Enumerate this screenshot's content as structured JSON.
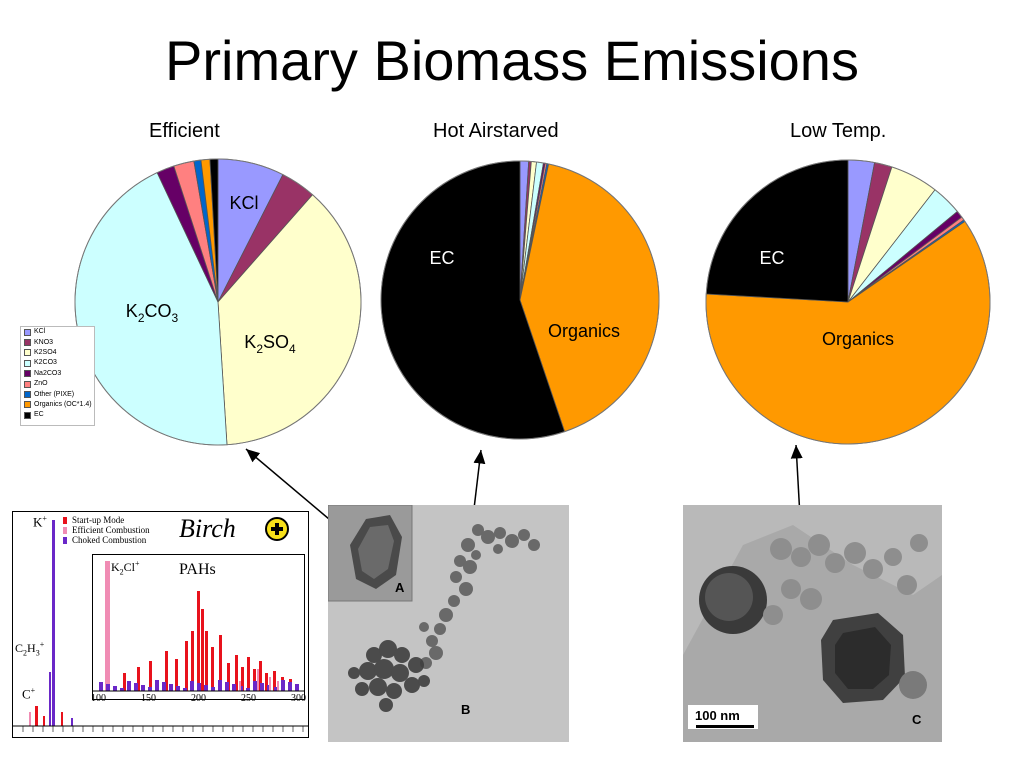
{
  "title": "Primary Biomass Emissions",
  "legend_entries": [
    "KCl",
    "KNO3",
    "K2SO4",
    "K2CO3",
    "Na2CO3",
    "ZnO",
    "Other (PIXE)",
    "Organics (OC*1.4)",
    "EC"
  ],
  "category_colors": {
    "KCl": "#9999ff",
    "KNO3": "#993366",
    "K2SO4": "#ffffcc",
    "K2CO3": "#ccffff",
    "Na2CO3": "#660066",
    "ZnO": "#ff8080",
    "Other (PIXE)": "#0066cc",
    "Organics (OC*1.4)": "#ff9900",
    "EC": "#000000"
  },
  "chart_data": [
    {
      "type": "pie",
      "title": "Efficient",
      "slices": [
        {
          "category": "KCl",
          "value": 7.5
        },
        {
          "category": "KNO3",
          "value": 4.0
        },
        {
          "category": "K2SO4",
          "value": 37.5
        },
        {
          "category": "K2CO3",
          "value": 44.0
        },
        {
          "category": "Na2CO3",
          "value": 2.0
        },
        {
          "category": "ZnO",
          "value": 2.3
        },
        {
          "category": "Other (PIXE)",
          "value": 0.8
        },
        {
          "category": "Organics (OC*1.4)",
          "value": 1.0
        },
        {
          "category": "EC",
          "value": 0.9
        }
      ],
      "slice_labels": [
        {
          "category": "KCl",
          "parts": [
            [
              "KCl",
              ""
            ]
          ]
        },
        {
          "category": "K2CO3",
          "parts": [
            [
              "K",
              ""
            ],
            [
              "2",
              "sub"
            ],
            [
              "CO",
              ""
            ],
            [
              "3",
              "sub"
            ]
          ]
        },
        {
          "category": "K2SO4",
          "parts": [
            [
              "K",
              ""
            ],
            [
              "2",
              "sub"
            ],
            [
              "SO",
              ""
            ],
            [
              "4",
              "sub"
            ]
          ]
        }
      ]
    },
    {
      "type": "pie",
      "title": "Hot Airstarved",
      "slices": [
        {
          "category": "KCl",
          "value": 1.0
        },
        {
          "category": "KNO3",
          "value": 0.3
        },
        {
          "category": "K2SO4",
          "value": 0.6
        },
        {
          "category": "K2CO3",
          "value": 0.8
        },
        {
          "category": "Na2CO3",
          "value": 0.2
        },
        {
          "category": "ZnO",
          "value": 0.2
        },
        {
          "category": "Other (PIXE)",
          "value": 0.2
        },
        {
          "category": "Organics (OC*1.4)",
          "value": 41.5
        },
        {
          "category": "EC",
          "value": 55.2
        }
      ],
      "slice_labels": [
        {
          "category": "EC",
          "parts": [
            [
              "EC",
              ""
            ]
          ]
        },
        {
          "category": "Organics (OC*1.4)",
          "parts": [
            [
              "Organics",
              ""
            ]
          ]
        }
      ]
    },
    {
      "type": "pie",
      "title": "Low Temp.",
      "slices": [
        {
          "category": "KCl",
          "value": 3.0
        },
        {
          "category": "KNO3",
          "value": 2.0
        },
        {
          "category": "K2SO4",
          "value": 5.5
        },
        {
          "category": "K2CO3",
          "value": 3.5
        },
        {
          "category": "Na2CO3",
          "value": 0.8
        },
        {
          "category": "ZnO",
          "value": 0.4
        },
        {
          "category": "Other (PIXE)",
          "value": 0.2
        },
        {
          "category": "Organics (OC*1.4)",
          "value": 60.5
        },
        {
          "category": "EC",
          "value": 24.1
        }
      ],
      "slice_labels": [
        {
          "category": "EC",
          "parts": [
            [
              "EC",
              ""
            ]
          ]
        },
        {
          "category": "Organics (OC*1.4)",
          "parts": [
            [
              "Organics",
              ""
            ]
          ]
        }
      ]
    }
  ],
  "photos": {
    "left_letters": [
      "A",
      "B"
    ],
    "right_letter": "C",
    "scale_bar": "100 nm"
  },
  "spectrum": {
    "title": "Birch",
    "legend": [
      {
        "label": "Start-up Mode",
        "color": "#e8121c"
      },
      {
        "label": "Efficient Combustion",
        "color": "#f08cb4"
      },
      {
        "label": "Choked Combustion",
        "color": "#6a28c8"
      }
    ],
    "inset_label": "PAHs",
    "inset_ticks": [
      "100",
      "150",
      "200",
      "250",
      "300"
    ],
    "main_labels": {
      "k": [
        "K",
        "+"
      ],
      "c2h3": [
        "C",
        "2",
        "H",
        "3",
        "+"
      ],
      "c": [
        "C",
        "+"
      ],
      "k2cl": [
        "K",
        "2",
        "Cl",
        "+"
      ]
    }
  }
}
